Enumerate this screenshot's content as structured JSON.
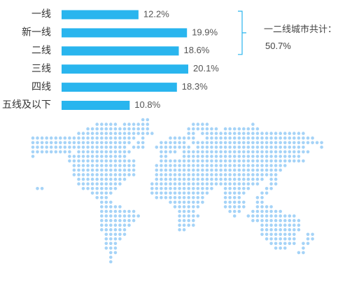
{
  "chart_data": {
    "type": "bar",
    "orientation": "horizontal",
    "categories": [
      "一线",
      "新一线",
      "二线",
      "三线",
      "四线",
      "五线及以下"
    ],
    "values": [
      12.2,
      19.9,
      18.6,
      20.1,
      18.3,
      10.8
    ],
    "value_labels": [
      "12.2%",
      "19.9%",
      "18.6%",
      "20.1%",
      "18.3%",
      "10.8%"
    ],
    "unit": "%",
    "xlim": [
      0,
      20.1
    ],
    "bar_color": "#29b5ee",
    "grid": false,
    "summary": {
      "label": "一二线城市共计：",
      "value": "50.7%",
      "bracket_covers": [
        "一线",
        "新一线",
        "二线"
      ]
    }
  },
  "decoration": {
    "map_type": "dotted-world-map",
    "dot_color": "#a5d3f7"
  }
}
